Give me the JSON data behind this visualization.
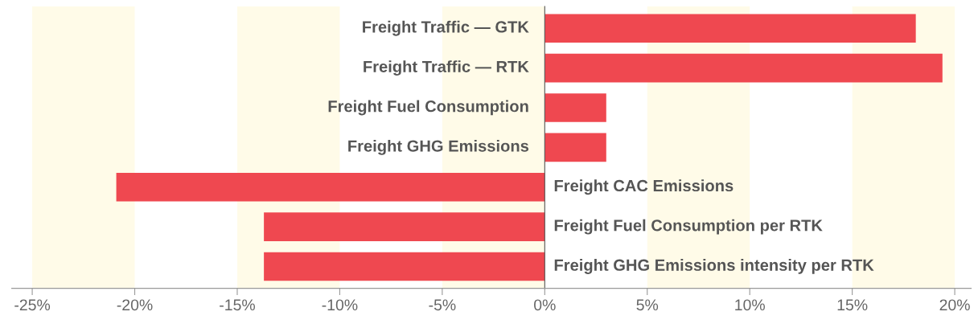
{
  "chart_data": {
    "type": "bar",
    "orientation": "horizontal",
    "categories": [
      "Freight Traffic — GTK",
      "Freight Traffic — RTK",
      "Freight Fuel Consumption",
      "Freight GHG Emissions",
      "Freight CAC Emissions",
      "Freight Fuel Consumption per RTK",
      "Freight GHG Emissions intensity per RTK"
    ],
    "values": [
      18.1,
      19.4,
      3.0,
      3.0,
      -20.9,
      -13.7,
      -13.7
    ],
    "color": "#ef4850",
    "xlim": [
      -26,
      20.8
    ],
    "xticks": [
      {
        "value": -25,
        "label": "-25%"
      },
      {
        "value": -20,
        "label": "-20%"
      },
      {
        "value": -15,
        "label": "-15%"
      },
      {
        "value": -10,
        "label": "-10%"
      },
      {
        "value": -5,
        "label": "-5%"
      },
      {
        "value": 0,
        "label": "0%"
      },
      {
        "value": 5,
        "label": "5%"
      },
      {
        "value": 10,
        "label": "10%"
      },
      {
        "value": 15,
        "label": "15%"
      },
      {
        "value": 20,
        "label": "20%"
      }
    ],
    "bands": [
      {
        "axis": "x",
        "from": -25,
        "to": -20,
        "color": "#fffbe8"
      },
      {
        "axis": "x",
        "from": -15,
        "to": -10,
        "color": "#fffbe8"
      },
      {
        "axis": "x",
        "from": -5,
        "to": 0,
        "color": "#fffbe8"
      },
      {
        "axis": "x",
        "from": 5,
        "to": 10,
        "color": "#fffbe8"
      },
      {
        "axis": "x",
        "from": 15,
        "to": 20,
        "color": "#fffbe8"
      }
    ],
    "grid": false,
    "legend": false
  }
}
